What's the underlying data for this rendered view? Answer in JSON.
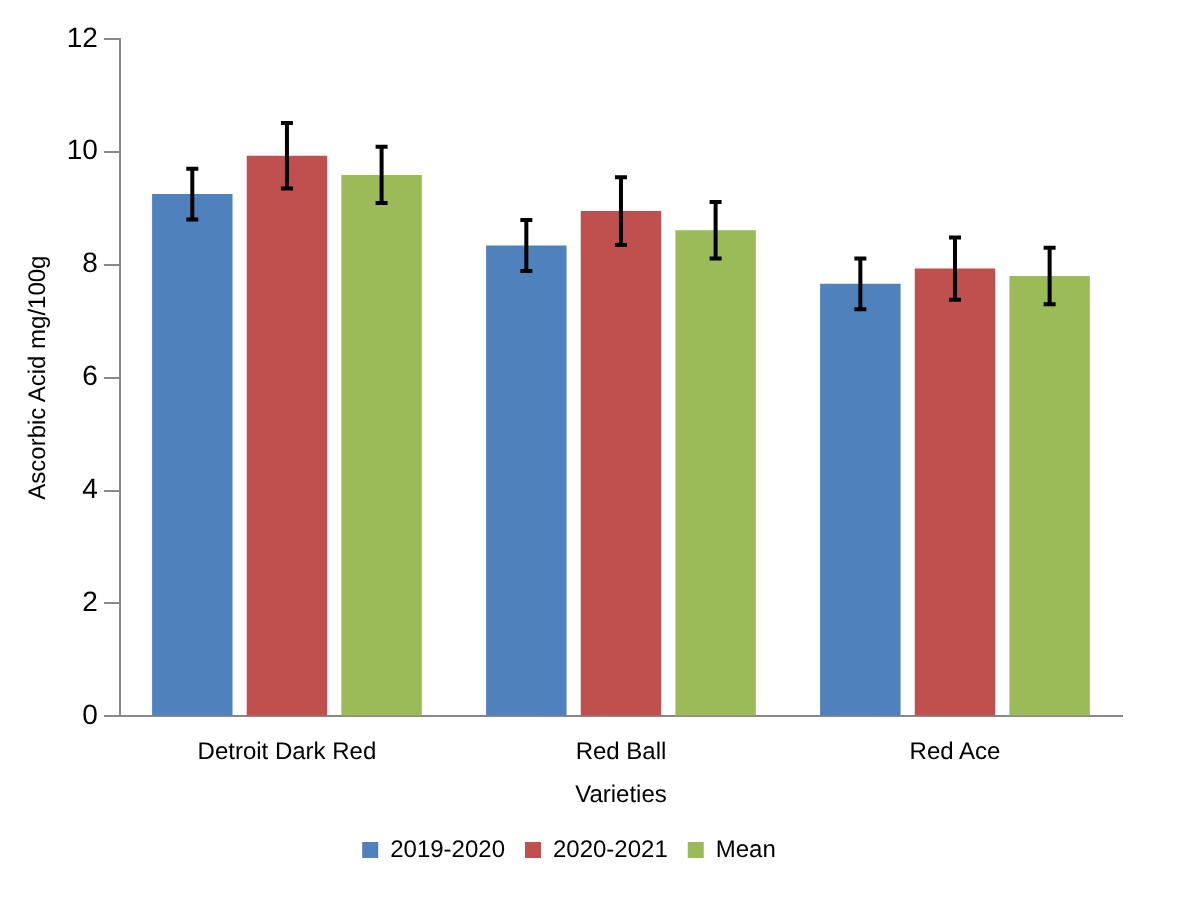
{
  "chart_data": {
    "type": "bar",
    "xlabel": "Varieties",
    "ylabel": "Ascorbic Acid mg/100g",
    "categories": [
      "Detroit Dark Red",
      "Red Ball",
      "Red Ace"
    ],
    "series": [
      {
        "name": "2019-2020",
        "color": "#4f81bd",
        "values": [
          9.25,
          8.34,
          7.66
        ],
        "errors": [
          0.45,
          0.45,
          0.45
        ]
      },
      {
        "name": "2020-2021",
        "color": "#c0504d",
        "values": [
          9.93,
          8.95,
          7.93
        ],
        "errors": [
          0.58,
          0.6,
          0.55
        ]
      },
      {
        "name": "Mean",
        "color": "#9bbb59",
        "values": [
          9.59,
          8.61,
          7.8
        ],
        "errors": [
          0.5,
          0.5,
          0.5
        ]
      }
    ],
    "ylim": [
      0,
      12
    ],
    "yticks": [
      0,
      2,
      4,
      6,
      8,
      10,
      12
    ],
    "grid": false,
    "legend": "bottom"
  }
}
